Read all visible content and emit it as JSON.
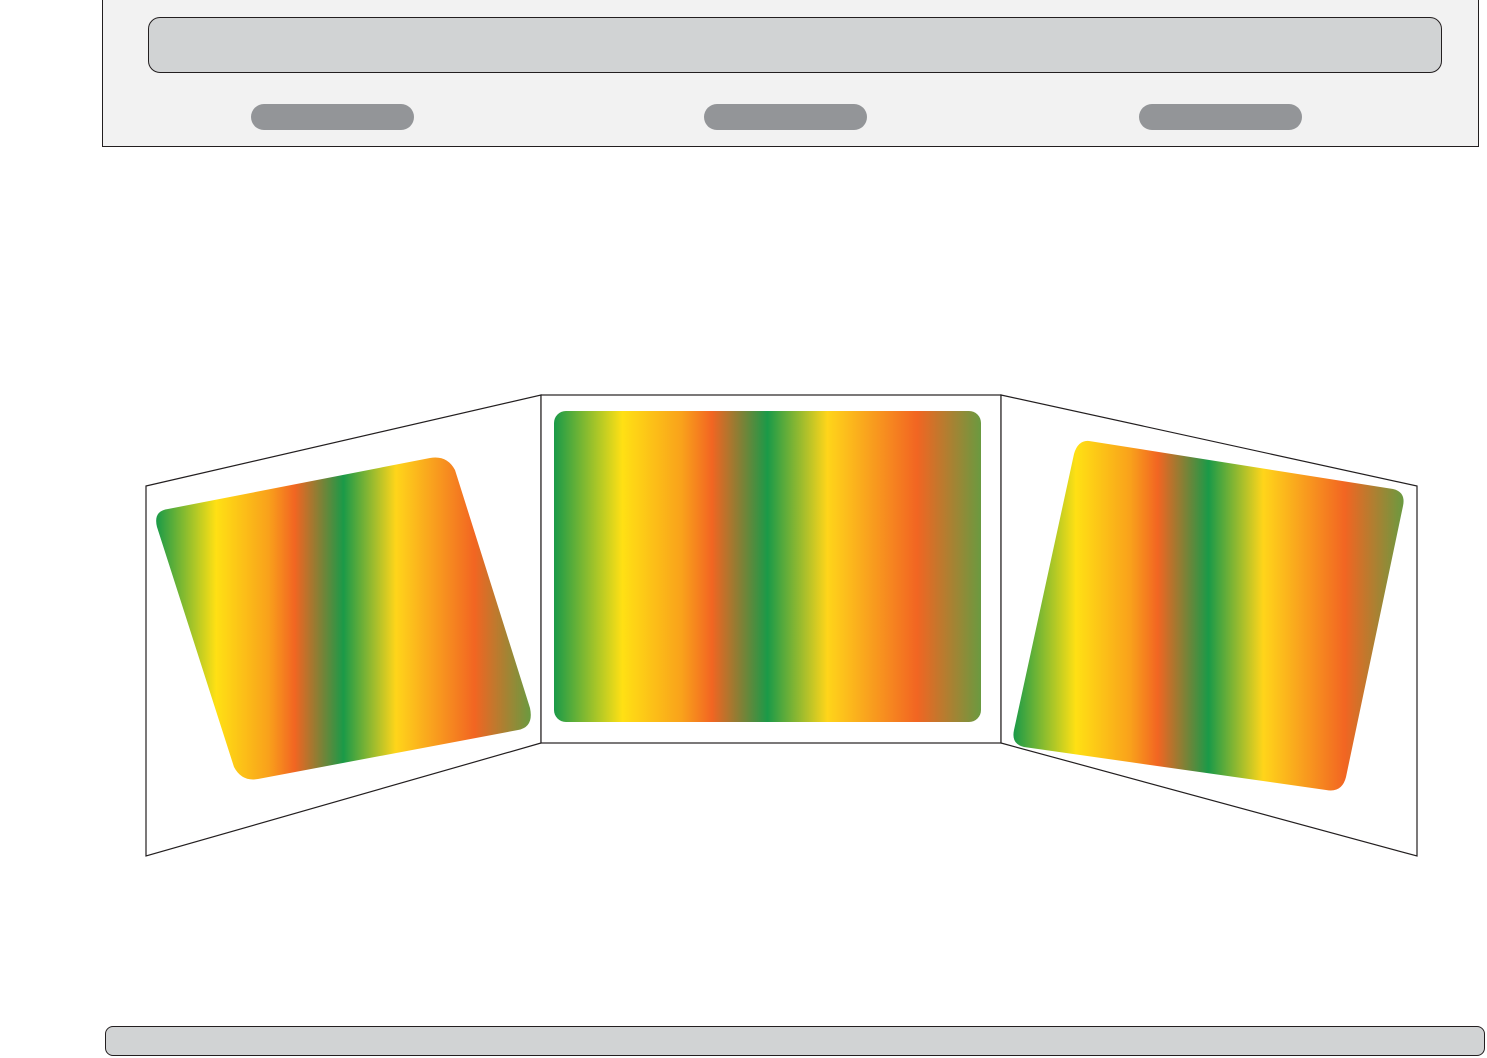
{
  "diagram": {
    "type": "three-panel-perspective-display",
    "panels": [
      "left-panel",
      "center-panel",
      "right-panel"
    ],
    "gradient_colors": [
      "#1a9a48",
      "#ffe014",
      "#f26522",
      "#8c8c3c"
    ],
    "header_color": "#f2f2f2",
    "placeholder_color": "#d1d3d4",
    "pill_color": "#939598"
  }
}
